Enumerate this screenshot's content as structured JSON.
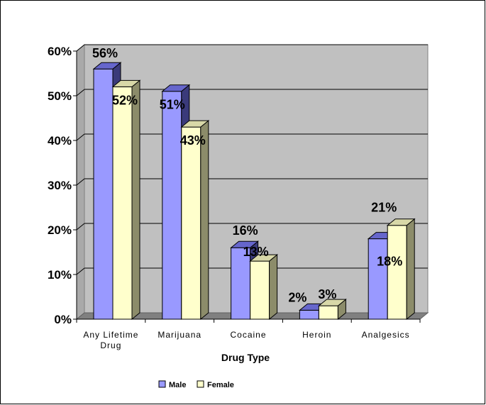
{
  "chart_data": {
    "type": "bar",
    "title": "",
    "xlabel": "Drug Type",
    "ylabel": "",
    "categories": [
      "Any Lifetime Drug",
      "Marijuana",
      "Cocaine",
      "Heroin",
      "Analgesics"
    ],
    "category_lines": [
      [
        "Any Lifetime",
        "Drug"
      ],
      [
        "Marijuana"
      ],
      [
        "Cocaine"
      ],
      [
        "Heroin"
      ],
      [
        "Analgesics"
      ]
    ],
    "series": [
      {
        "name": "Male",
        "values": [
          56,
          51,
          16,
          2,
          18
        ],
        "labels": [
          "56%",
          "51%",
          "16%",
          "2%",
          "18%"
        ],
        "color": "#9999ff",
        "side": "#3a3a7a",
        "top": "#6666cc"
      },
      {
        "name": "Female",
        "values": [
          52,
          43,
          13,
          3,
          21
        ],
        "labels": [
          "52%",
          "43%",
          "13%",
          "3%",
          "21%"
        ],
        "color": "#ffffcc",
        "side": "#8c8c6a",
        "top": "#d8d8a8"
      }
    ],
    "ylim": [
      0,
      60
    ],
    "yticks": [
      0,
      10,
      20,
      30,
      40,
      50,
      60
    ],
    "ytick_labels": [
      "0%",
      "10%",
      "20%",
      "30%",
      "40%",
      "50%",
      "60%"
    ],
    "grid": true,
    "legend_position": "bottom",
    "plot_background": "#c0c0c0"
  }
}
